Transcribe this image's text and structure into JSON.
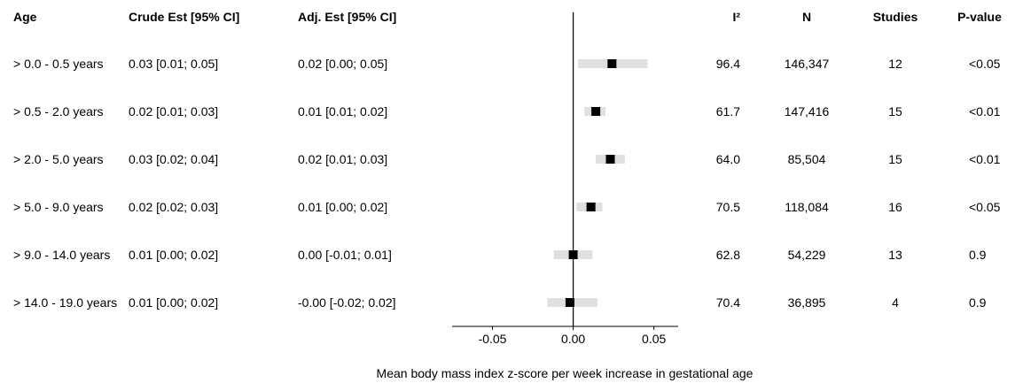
{
  "headers": {
    "age": "Age",
    "crude": "Crude Est [95% CI]",
    "adj": "Adj. Est [95% CI]",
    "i2": "I²",
    "n": "N",
    "studies": "Studies",
    "pvalue": "P-value"
  },
  "rows": [
    {
      "age": "> 0.0 - 0.5 years",
      "crude": "0.03 [0.01; 0.05]",
      "adj": "0.02 [0.00; 0.05]",
      "i2": "96.4",
      "n": "146,347",
      "studies": "12",
      "p": "<0.05"
    },
    {
      "age": "> 0.5 - 2.0 years",
      "crude": "0.02 [0.01; 0.03]",
      "adj": "0.01 [0.01; 0.02]",
      "i2": "61.7",
      "n": "147,416",
      "studies": "15",
      "p": "<0.01"
    },
    {
      "age": "> 2.0 - 5.0 years",
      "crude": "0.03 [0.02; 0.04]",
      "adj": "0.02 [0.01; 0.03]",
      "i2": "64.0",
      "n": "85,504",
      "studies": "15",
      "p": "<0.01"
    },
    {
      "age": "> 5.0 - 9.0 years",
      "crude": "0.02 [0.02; 0.03]",
      "adj": "0.01 [0.00; 0.02]",
      "i2": "70.5",
      "n": "118,084",
      "studies": "16",
      "p": "<0.05"
    },
    {
      "age": "> 9.0 - 14.0 years",
      "crude": "0.01 [0.00; 0.02]",
      "adj": "0.00 [-0.01; 0.01]",
      "i2": "62.8",
      "n": "54,229",
      "studies": "13",
      "p": "0.9"
    },
    {
      "age": "> 14.0 - 19.0 years",
      "crude": "0.01 [0.00; 0.02]",
      "adj": "-0.00 [-0.02; 0.02]",
      "i2": "70.4",
      "n": "36,895",
      "studies": "4",
      "p": "0.9"
    }
  ],
  "chart_data": {
    "type": "forest",
    "xlabel": "Mean body mass index z-score per week increase in gestational age",
    "xlim": [
      -0.075,
      0.065
    ],
    "xticks": [
      -0.05,
      0.0,
      0.05
    ],
    "xtick_labels": [
      "-0.05",
      "0.00",
      "0.05"
    ],
    "reference_line": 0,
    "categories": [
      "> 0.0 - 0.5 years",
      "> 0.5 - 2.0 years",
      "> 2.0 - 5.0 years",
      "> 5.0 - 9.0 years",
      "> 9.0 - 14.0 years",
      "> 14.0 - 19.0 years"
    ],
    "estimates": [
      0.024,
      0.014,
      0.023,
      0.011,
      0.0,
      -0.002
    ],
    "ci_lower": [
      0.003,
      0.007,
      0.014,
      0.002,
      -0.012,
      -0.016
    ],
    "ci_upper": [
      0.046,
      0.02,
      0.032,
      0.018,
      0.012,
      0.015
    ],
    "colors": {
      "point": "#000000",
      "ci_band": "#e0e0e0",
      "axis": "#000000"
    }
  }
}
